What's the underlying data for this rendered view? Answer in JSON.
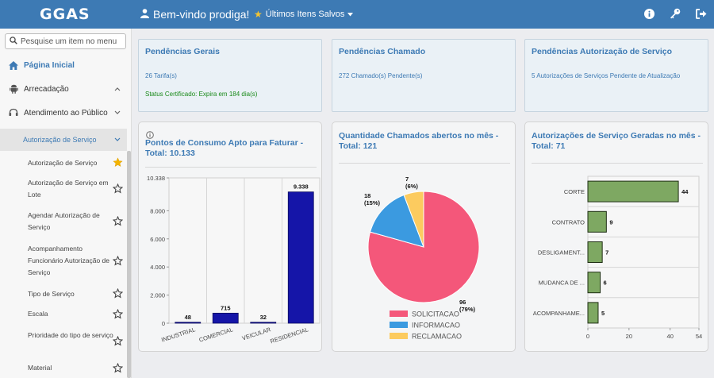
{
  "header": {
    "logo": "GGAS",
    "welcome": "Bem-vindo prodiga!",
    "saved_items": "Últimos Itens Salvos"
  },
  "sidebar": {
    "search_placeholder": "Pesquise um item no menu",
    "top_items": [
      {
        "label": "Página Inicial",
        "icon": "home-icon"
      },
      {
        "label": "Arrecadação",
        "icon": "android-icon"
      },
      {
        "label": "Atendimento ao Público",
        "icon": "headset-icon"
      }
    ],
    "submenu": "Autorização de Serviço",
    "subitems": [
      {
        "label": "Autorização de Serviço",
        "starred": true
      },
      {
        "label": "Autorização de Serviço em Lote",
        "starred": false
      },
      {
        "label": "Agendar Autorização de Serviço",
        "starred": false
      },
      {
        "label": "Acompanhamento Funcionário Autorização de Serviço",
        "starred": false
      },
      {
        "label": "Tipo de Serviço",
        "starred": false
      },
      {
        "label": "Escala",
        "starred": false
      },
      {
        "label": "Prioridade do tipo de serviço",
        "starred": false
      },
      {
        "label": "Material",
        "starred": false
      }
    ]
  },
  "panels": {
    "gerais": {
      "title": "Pendências Gerais",
      "line1": "26 Tarifa(s)",
      "line2": "Status Certificado: Expira em 184 dia(s)"
    },
    "chamado": {
      "title": "Pendências Chamado",
      "line1": "272 Chamado(s) Pendente(s)"
    },
    "autorizacao": {
      "title": "Pendências Autorização de Serviço",
      "line1": "5 Autorizações de Serviços Pendente de Atualização"
    }
  },
  "chart_data": [
    {
      "type": "bar",
      "title": "Pontos de Consumo Apto para Faturar - Total: 10.133",
      "categories": [
        "INDUSTRIAL",
        "COMERCIAL",
        "VEICULAR",
        "RESIDENCIAL"
      ],
      "values": [
        48,
        715,
        32,
        9338
      ],
      "value_labels": [
        "48",
        "715",
        "32",
        "9.338"
      ],
      "yticks": [
        "0",
        "2.000",
        "4.000",
        "6.000",
        "8.000",
        "10.338"
      ],
      "ylim": [
        0,
        10338
      ],
      "color": "#1515a8"
    },
    {
      "type": "pie",
      "title": "Quantidade Chamados abertos no mês - Total: 121",
      "slices": [
        {
          "label": "SOLICITACAO",
          "value": 96,
          "pct": "(79%)",
          "color": "#f4577a"
        },
        {
          "label": "INFORMACAO",
          "value": 18,
          "pct": "(15%)",
          "color": "#3b9ae0"
        },
        {
          "label": "RECLAMACAO",
          "value": 7,
          "pct": "(6%)",
          "color": "#fccb5f"
        }
      ]
    },
    {
      "type": "bar",
      "orientation": "horizontal",
      "title": "Autorizações de Serviço Geradas no mês - Total: 71",
      "categories": [
        "CORTE",
        "CONTRATO",
        "DESLIGAMENT...",
        "MUDANCA DE ...",
        "ACOMPANHAME..."
      ],
      "values": [
        44,
        9,
        7,
        6,
        5
      ],
      "xticks": [
        "0",
        "20",
        "40",
        "54"
      ],
      "xlim": [
        0,
        54
      ],
      "color": "#7ea862"
    }
  ]
}
